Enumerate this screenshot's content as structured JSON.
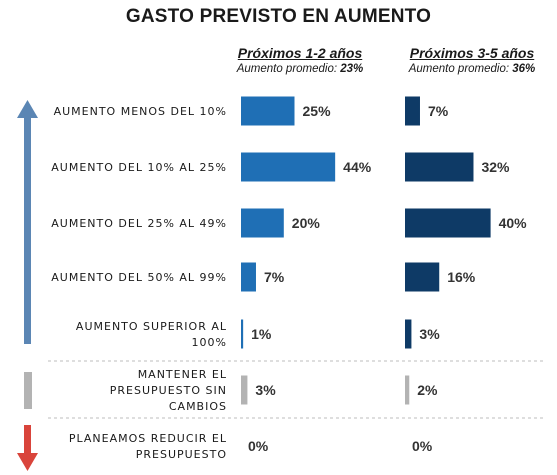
{
  "chart_data": {
    "type": "bar",
    "title": "GASTO PREVISTO EN AUMENTO",
    "categories": [
      [
        "AUMENTO MENOS DEL 10%"
      ],
      [
        "AUMENTO DEL 10% AL 25%"
      ],
      [
        "AUMENTO DEL 25% AL 49%"
      ],
      [
        "AUMENTO DEL 50% AL 99%"
      ],
      [
        "AUMENTO SUPERIOR AL",
        "100%"
      ],
      [
        "MANTENER EL",
        "PRESUPUESTO SIN",
        "CAMBIOS"
      ],
      [
        "PLANEAMOS REDUCIR EL",
        "PRESUPUESTO"
      ]
    ],
    "series": [
      {
        "name": "Próximos 1-2 años",
        "subtitle_prefix": "Aumento promedio: ",
        "subtitle_value": "23%",
        "values": [
          25,
          44,
          20,
          7,
          1,
          3,
          0
        ],
        "labels": [
          "25%",
          "44%",
          "20%",
          "7%",
          "1%",
          "3%",
          "0%"
        ]
      },
      {
        "name": "Próximos 3-5 años",
        "subtitle_prefix": "Aumento promedio: ",
        "subtitle_value": "36%",
        "values": [
          7,
          32,
          40,
          16,
          3,
          2,
          0
        ],
        "labels": [
          "7%",
          "32%",
          "40%",
          "16%",
          "3%",
          "2%",
          "0%"
        ]
      }
    ],
    "unit": "%",
    "colors": {
      "series1": "#1f6fb5",
      "series2": "#0e3a66",
      "neutral": "#b3b3b3",
      "arrow_up": "#5b86b4",
      "arrow_down": "#d9443b",
      "separator": "#bdbdbd"
    },
    "grid": false,
    "legend": "none"
  }
}
